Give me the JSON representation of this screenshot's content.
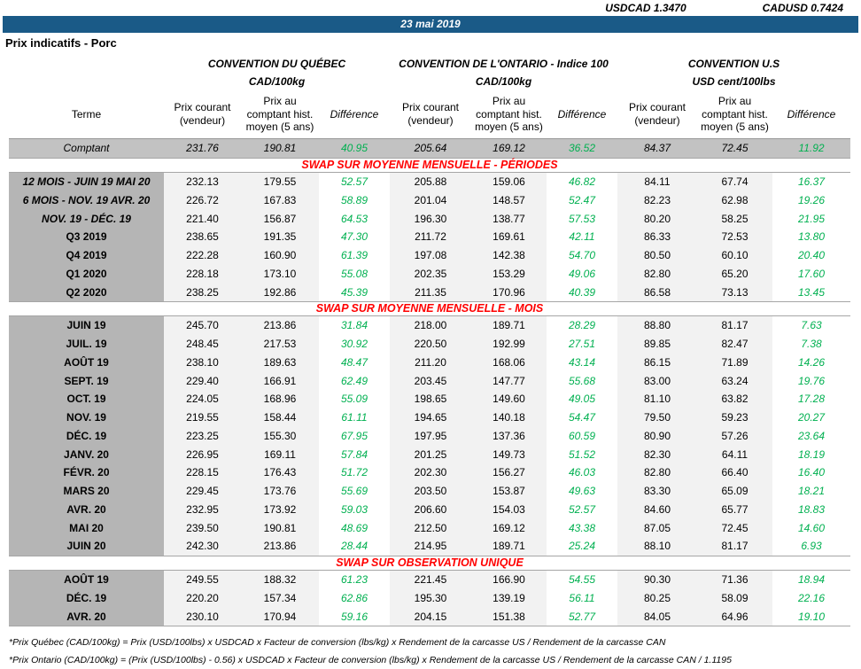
{
  "header": {
    "usdcad": "USDCAD 1.3470",
    "cadusd": "CADUSD 0.7424",
    "date": "23 mai 2019",
    "title": "Prix indicatifs - Porc"
  },
  "colors": {
    "banner_blue": "#1a5a87",
    "section_red": "#ff0000",
    "diff_green": "#00b050",
    "terme_gray": "#b5b5b5",
    "spot_gray": "#c2c2c2",
    "band_gray": "#f2f2f2"
  },
  "table": {
    "groups": [
      {
        "name": "CONVENTION DU QUÉBEC",
        "unit": "CAD/100kg"
      },
      {
        "name": "CONVENTION DE L'ONTARIO - Indice 100",
        "unit": "CAD/100kg"
      },
      {
        "name": "CONVENTION U.S",
        "unit": "USD cent/100lbs"
      }
    ],
    "col_headers": {
      "terme": "Terme",
      "current": "Prix courant (vendeur)",
      "hist": "Prix au comptant hist. moyen (5 ans)",
      "diff": "Différence"
    },
    "rows": [
      {
        "type": "spot",
        "label": "Comptant",
        "values": [
          "231.76",
          "190.81",
          "40.95",
          "205.64",
          "169.12",
          "36.52",
          "84.37",
          "72.45",
          "11.92"
        ]
      },
      {
        "type": "section",
        "label": "SWAP SUR MOYENNE MENSUELLE - PÉRIODES"
      },
      {
        "type": "data",
        "italic": true,
        "label": "12 MOIS - JUIN 19 MAI 20",
        "values": [
          "232.13",
          "179.55",
          "52.57",
          "205.88",
          "159.06",
          "46.82",
          "84.11",
          "67.74",
          "16.37"
        ]
      },
      {
        "type": "data",
        "italic": true,
        "label": "6 MOIS - NOV. 19 AVR. 20",
        "values": [
          "226.72",
          "167.83",
          "58.89",
          "201.04",
          "148.57",
          "52.47",
          "82.23",
          "62.98",
          "19.26"
        ]
      },
      {
        "type": "data",
        "italic": true,
        "label": "NOV. 19 - DÉC. 19",
        "values": [
          "221.40",
          "156.87",
          "64.53",
          "196.30",
          "138.77",
          "57.53",
          "80.20",
          "58.25",
          "21.95"
        ]
      },
      {
        "type": "data",
        "label": "Q3 2019",
        "values": [
          "238.65",
          "191.35",
          "47.30",
          "211.72",
          "169.61",
          "42.11",
          "86.33",
          "72.53",
          "13.80"
        ]
      },
      {
        "type": "data",
        "label": "Q4 2019",
        "values": [
          "222.28",
          "160.90",
          "61.39",
          "197.08",
          "142.38",
          "54.70",
          "80.50",
          "60.10",
          "20.40"
        ]
      },
      {
        "type": "data",
        "label": "Q1 2020",
        "values": [
          "228.18",
          "173.10",
          "55.08",
          "202.35",
          "153.29",
          "49.06",
          "82.80",
          "65.20",
          "17.60"
        ]
      },
      {
        "type": "data",
        "label": "Q2 2020",
        "values": [
          "238.25",
          "192.86",
          "45.39",
          "211.35",
          "170.96",
          "40.39",
          "86.58",
          "73.13",
          "13.45"
        ]
      },
      {
        "type": "section",
        "label": "SWAP SUR MOYENNE MENSUELLE - MOIS"
      },
      {
        "type": "data",
        "label": "JUIN 19",
        "values": [
          "245.70",
          "213.86",
          "31.84",
          "218.00",
          "189.71",
          "28.29",
          "88.80",
          "81.17",
          "7.63"
        ]
      },
      {
        "type": "data",
        "label": "JUIL. 19",
        "values": [
          "248.45",
          "217.53",
          "30.92",
          "220.50",
          "192.99",
          "27.51",
          "89.85",
          "82.47",
          "7.38"
        ]
      },
      {
        "type": "data",
        "label": "AOÛT 19",
        "values": [
          "238.10",
          "189.63",
          "48.47",
          "211.20",
          "168.06",
          "43.14",
          "86.15",
          "71.89",
          "14.26"
        ]
      },
      {
        "type": "data",
        "label": "SEPT. 19",
        "values": [
          "229.40",
          "166.91",
          "62.49",
          "203.45",
          "147.77",
          "55.68",
          "83.00",
          "63.24",
          "19.76"
        ]
      },
      {
        "type": "data",
        "label": "OCT. 19",
        "values": [
          "224.05",
          "168.96",
          "55.09",
          "198.65",
          "149.60",
          "49.05",
          "81.10",
          "63.82",
          "17.28"
        ]
      },
      {
        "type": "data",
        "label": "NOV. 19",
        "values": [
          "219.55",
          "158.44",
          "61.11",
          "194.65",
          "140.18",
          "54.47",
          "79.50",
          "59.23",
          "20.27"
        ]
      },
      {
        "type": "data",
        "label": "DÉC. 19",
        "values": [
          "223.25",
          "155.30",
          "67.95",
          "197.95",
          "137.36",
          "60.59",
          "80.90",
          "57.26",
          "23.64"
        ]
      },
      {
        "type": "data",
        "label": "JANV. 20",
        "values": [
          "226.95",
          "169.11",
          "57.84",
          "201.25",
          "149.73",
          "51.52",
          "82.30",
          "64.11",
          "18.19"
        ]
      },
      {
        "type": "data",
        "label": "FÉVR. 20",
        "values": [
          "228.15",
          "176.43",
          "51.72",
          "202.30",
          "156.27",
          "46.03",
          "82.80",
          "66.40",
          "16.40"
        ]
      },
      {
        "type": "data",
        "label": "MARS 20",
        "values": [
          "229.45",
          "173.76",
          "55.69",
          "203.50",
          "153.87",
          "49.63",
          "83.30",
          "65.09",
          "18.21"
        ]
      },
      {
        "type": "data",
        "label": "AVR. 20",
        "values": [
          "232.95",
          "173.92",
          "59.03",
          "206.60",
          "154.03",
          "52.57",
          "84.60",
          "65.77",
          "18.83"
        ]
      },
      {
        "type": "data",
        "label": "MAI 20",
        "values": [
          "239.50",
          "190.81",
          "48.69",
          "212.50",
          "169.12",
          "43.38",
          "87.05",
          "72.45",
          "14.60"
        ]
      },
      {
        "type": "data",
        "label": "JUIN 20",
        "values": [
          "242.30",
          "213.86",
          "28.44",
          "214.95",
          "189.71",
          "25.24",
          "88.10",
          "81.17",
          "6.93"
        ]
      },
      {
        "type": "section",
        "label": "SWAP SUR OBSERVATION UNIQUE"
      },
      {
        "type": "data",
        "label": "AOÛT 19",
        "values": [
          "249.55",
          "188.32",
          "61.23",
          "221.45",
          "166.90",
          "54.55",
          "90.30",
          "71.36",
          "18.94"
        ]
      },
      {
        "type": "data",
        "label": "DÉC. 19",
        "values": [
          "220.20",
          "157.34",
          "62.86",
          "195.30",
          "139.19",
          "56.11",
          "80.25",
          "58.09",
          "22.16"
        ]
      },
      {
        "type": "data",
        "label": "AVR. 20",
        "values": [
          "230.10",
          "170.94",
          "59.16",
          "204.15",
          "151.38",
          "52.77",
          "84.05",
          "64.96",
          "19.10"
        ]
      }
    ]
  },
  "footnotes": [
    "*Prix Québec (CAD/100kg) = Prix (USD/100lbs) x USDCAD x Facteur de conversion (lbs/kg) x Rendement de la carcasse US / Rendement de la carcasse CAN",
    "*Prix Ontario (CAD/100kg) = (Prix (USD/100lbs) - 0.56) x USDCAD x Facteur de conversion (lbs/kg) x Rendement de la carcasse US / Rendement de la carcasse CAN / 1.1195"
  ]
}
